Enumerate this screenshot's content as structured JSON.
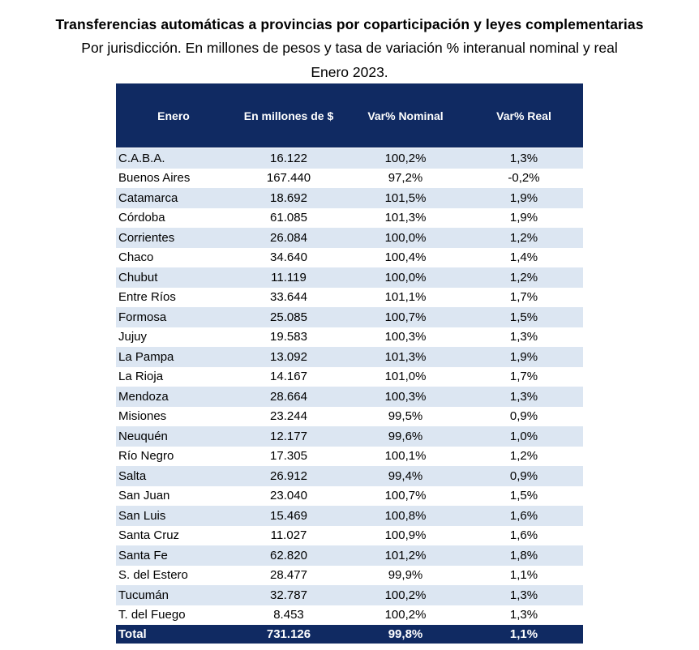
{
  "title": "Transferencias automáticas a provincias por coparticipación y leyes complementarias",
  "subtitle": "Por jurisdicción. En millones de pesos y tasa de variación % interanual nominal y real",
  "date": "Enero 2023.",
  "table": {
    "headers": [
      "Enero",
      "En millones de $",
      "Var% Nominal",
      "Var% Real"
    ],
    "rows": [
      [
        "C.A.B.A.",
        "16.122",
        "100,2%",
        "1,3%"
      ],
      [
        "Buenos Aires",
        "167.440",
        "97,2%",
        "-0,2%"
      ],
      [
        "Catamarca",
        "18.692",
        "101,5%",
        "1,9%"
      ],
      [
        "Córdoba",
        "61.085",
        "101,3%",
        "1,9%"
      ],
      [
        "Corrientes",
        "26.084",
        "100,0%",
        "1,2%"
      ],
      [
        "Chaco",
        "34.640",
        "100,4%",
        "1,4%"
      ],
      [
        "Chubut",
        "11.119",
        "100,0%",
        "1,2%"
      ],
      [
        "Entre Ríos",
        "33.644",
        "101,1%",
        "1,7%"
      ],
      [
        "Formosa",
        "25.085",
        "100,7%",
        "1,5%"
      ],
      [
        "Jujuy",
        "19.583",
        "100,3%",
        "1,3%"
      ],
      [
        "La Pampa",
        "13.092",
        "101,3%",
        "1,9%"
      ],
      [
        "La Rioja",
        "14.167",
        "101,0%",
        "1,7%"
      ],
      [
        "Mendoza",
        "28.664",
        "100,3%",
        "1,3%"
      ],
      [
        "Misiones",
        "23.244",
        "99,5%",
        "0,9%"
      ],
      [
        "Neuquén",
        "12.177",
        "99,6%",
        "1,0%"
      ],
      [
        "Río Negro",
        "17.305",
        "100,1%",
        "1,2%"
      ],
      [
        "Salta",
        "26.912",
        "99,4%",
        "0,9%"
      ],
      [
        "San Juan",
        "23.040",
        "100,7%",
        "1,5%"
      ],
      [
        "San Luis",
        "15.469",
        "100,8%",
        "1,6%"
      ],
      [
        "Santa Cruz",
        "11.027",
        "100,9%",
        "1,6%"
      ],
      [
        "Santa Fe",
        "62.820",
        "101,2%",
        "1,8%"
      ],
      [
        "S. del Estero",
        "28.477",
        "99,9%",
        "1,1%"
      ],
      [
        "Tucumán",
        "32.787",
        "100,2%",
        "1,3%"
      ],
      [
        "T. del Fuego",
        "8.453",
        "100,2%",
        "1,3%"
      ]
    ],
    "total": [
      "Total",
      "731.126",
      "99,8%",
      "1,1%"
    ]
  },
  "colors": {
    "header_bg": "#102a62",
    "header_text": "#ffffff",
    "stripe": "#dce6f2"
  }
}
